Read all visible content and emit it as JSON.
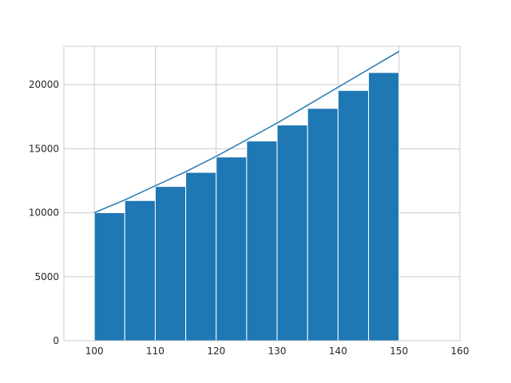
{
  "chart_data": {
    "type": "bar",
    "x": [
      100,
      105,
      110,
      115,
      120,
      125,
      130,
      135,
      140,
      145
    ],
    "bar_width": 5,
    "values": [
      10000,
      10950,
      12050,
      13150,
      14350,
      15600,
      16850,
      18150,
      19550,
      20950
    ],
    "series": [
      {
        "type": "line",
        "x": [
          100,
          105,
          110,
          115,
          120,
          125,
          130,
          135,
          140,
          145,
          150
        ],
        "values": [
          10000,
          11000,
          12100,
          13200,
          14400,
          15700,
          17000,
          18400,
          19800,
          21200,
          22600
        ]
      }
    ],
    "xlim": [
      95,
      160
    ],
    "ylim": [
      0,
      23000
    ],
    "xticks": [
      100,
      110,
      120,
      130,
      140,
      150,
      160
    ],
    "yticks": [
      0,
      5000,
      10000,
      15000,
      20000
    ],
    "grid": true,
    "colors": {
      "bar": "#1f77b4",
      "line": "#1f77b4",
      "grid": "#cccccc",
      "edge": "#ffffff"
    }
  }
}
